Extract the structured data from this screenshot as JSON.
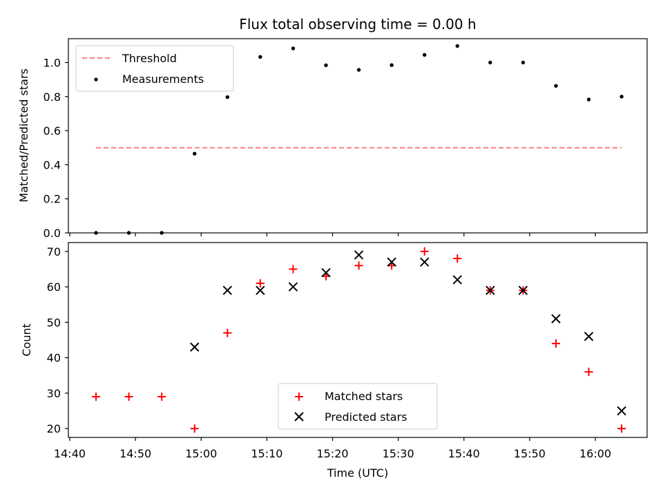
{
  "chart_data": [
    {
      "type": "scatter",
      "title": "Flux total observing time = 0.00 h",
      "xlabel": "",
      "ylabel": "Matched/Predicted stars",
      "ylim": [
        0,
        1.14
      ],
      "yticks": [
        "0.0",
        "0.2",
        "0.4",
        "0.6",
        "0.8",
        "1.0"
      ],
      "legend_position": "top-left",
      "threshold": {
        "name": "Threshold",
        "value": 0.5,
        "color": "#ff7f7f",
        "style": "dashed",
        "x_start": "14:44",
        "x_end": "16:04"
      },
      "series": [
        {
          "name": "Measurements",
          "marker": "dot",
          "color": "#000000",
          "x": [
            "14:44",
            "14:49",
            "14:54",
            "14:59",
            "15:04",
            "15:09",
            "15:14",
            "15:19",
            "15:24",
            "15:29",
            "15:34",
            "15:39",
            "15:44",
            "15:49",
            "15:54",
            "15:59",
            "16:04"
          ],
          "values": [
            0.0,
            0.0,
            0.0,
            0.465,
            0.797,
            1.033,
            1.083,
            0.984,
            0.957,
            0.985,
            1.045,
            1.097,
            1.0,
            1.0,
            0.863,
            0.783,
            0.8
          ]
        }
      ]
    },
    {
      "type": "scatter",
      "title": "",
      "xlabel": "Time (UTC)",
      "ylabel": "Count",
      "ylim": [
        17.5,
        72.5
      ],
      "yticks": [
        "20",
        "30",
        "40",
        "50",
        "60",
        "70"
      ],
      "xticks": [
        "14:40",
        "14:50",
        "15:00",
        "15:10",
        "15:20",
        "15:30",
        "15:40",
        "15:50",
        "16:00"
      ],
      "legend_position": "lower-center",
      "series": [
        {
          "name": "Matched stars",
          "marker": "plus",
          "color": "#ff0000",
          "x": [
            "14:44",
            "14:49",
            "14:54",
            "14:59",
            "15:04",
            "15:09",
            "15:14",
            "15:19",
            "15:24",
            "15:29",
            "15:34",
            "15:39",
            "15:44",
            "15:49",
            "15:54",
            "15:59",
            "16:04"
          ],
          "values": [
            29,
            29,
            29,
            20,
            47,
            61,
            65,
            63,
            66,
            66,
            70,
            68,
            59,
            59,
            44,
            36,
            20
          ]
        },
        {
          "name": "Predicted stars",
          "marker": "x",
          "color": "#000000",
          "x": [
            "14:59",
            "15:04",
            "15:09",
            "15:14",
            "15:19",
            "15:24",
            "15:29",
            "15:34",
            "15:39",
            "15:44",
            "15:49",
            "15:54",
            "15:59",
            "16:04"
          ],
          "values": [
            43,
            59,
            59,
            60,
            64,
            69,
            67,
            67,
            62,
            59,
            59,
            51,
            46,
            25
          ]
        }
      ]
    }
  ]
}
